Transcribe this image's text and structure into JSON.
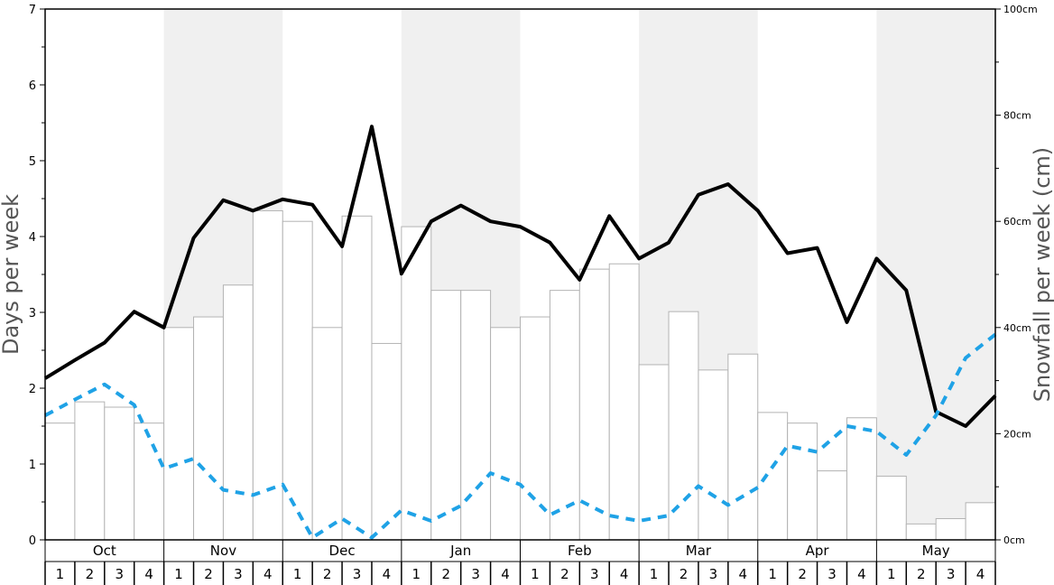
{
  "chart_data": {
    "type": "bar",
    "ylabel_left": "Days per week",
    "ylabel_right": "Snowfall per week (cm)",
    "left_axis": {
      "min": 0,
      "max": 7,
      "ticks": [
        "0",
        "1",
        "2",
        "3",
        "4",
        "5",
        "6",
        "7"
      ]
    },
    "right_axis": {
      "min": 0,
      "max": 100,
      "ticks": [
        "0cm",
        "20cm",
        "40cm",
        "60cm",
        "80cm",
        "100cm"
      ]
    },
    "months": [
      "Oct",
      "Nov",
      "Dec",
      "Jan",
      "Feb",
      "Mar",
      "Apr",
      "May"
    ],
    "weeks": [
      "1",
      "2",
      "3",
      "4"
    ],
    "colors": {
      "shade": "#f0f0f0",
      "bar_fill": "#ffffff",
      "bar_stroke": "#b3b3b3",
      "solid_line": "#000000",
      "dashed_line": "#1fa2e6",
      "axis": "#000000",
      "label": "#555555"
    },
    "series": [
      {
        "kind": "bar",
        "axis": "right",
        "values": [
          22,
          26,
          25,
          22,
          40,
          42,
          48,
          62,
          60,
          40,
          61,
          37,
          59,
          47,
          47,
          40,
          42,
          47,
          51,
          52,
          33,
          43,
          32,
          35,
          24,
          22,
          13,
          23,
          12,
          3,
          4,
          7
        ]
      },
      {
        "kind": "line",
        "axis": "left",
        "style": "solid",
        "values": [
          2.13,
          2.37,
          2.6,
          3.01,
          2.8,
          3.98,
          4.48,
          4.34,
          4.49,
          4.42,
          3.87,
          5.45,
          3.51,
          4.2,
          4.41,
          4.2,
          4.13,
          3.92,
          3.43,
          4.27,
          3.71,
          3.92,
          4.55,
          4.69,
          4.34,
          3.78,
          3.85,
          2.87,
          3.71,
          3.29,
          1.69,
          1.5,
          1.9
        ]
      },
      {
        "kind": "line",
        "axis": "left",
        "style": "dashed",
        "values": [
          1.64,
          1.85,
          2.05,
          1.78,
          0.94,
          1.07,
          0.66,
          0.59,
          0.73,
          0.03,
          0.28,
          0.03,
          0.39,
          0.25,
          0.45,
          0.88,
          0.73,
          0.33,
          0.52,
          0.32,
          0.25,
          0.32,
          0.71,
          0.46,
          0.69,
          1.24,
          1.16,
          1.5,
          1.43,
          1.12,
          1.64,
          2.4,
          2.71
        ]
      }
    ]
  }
}
